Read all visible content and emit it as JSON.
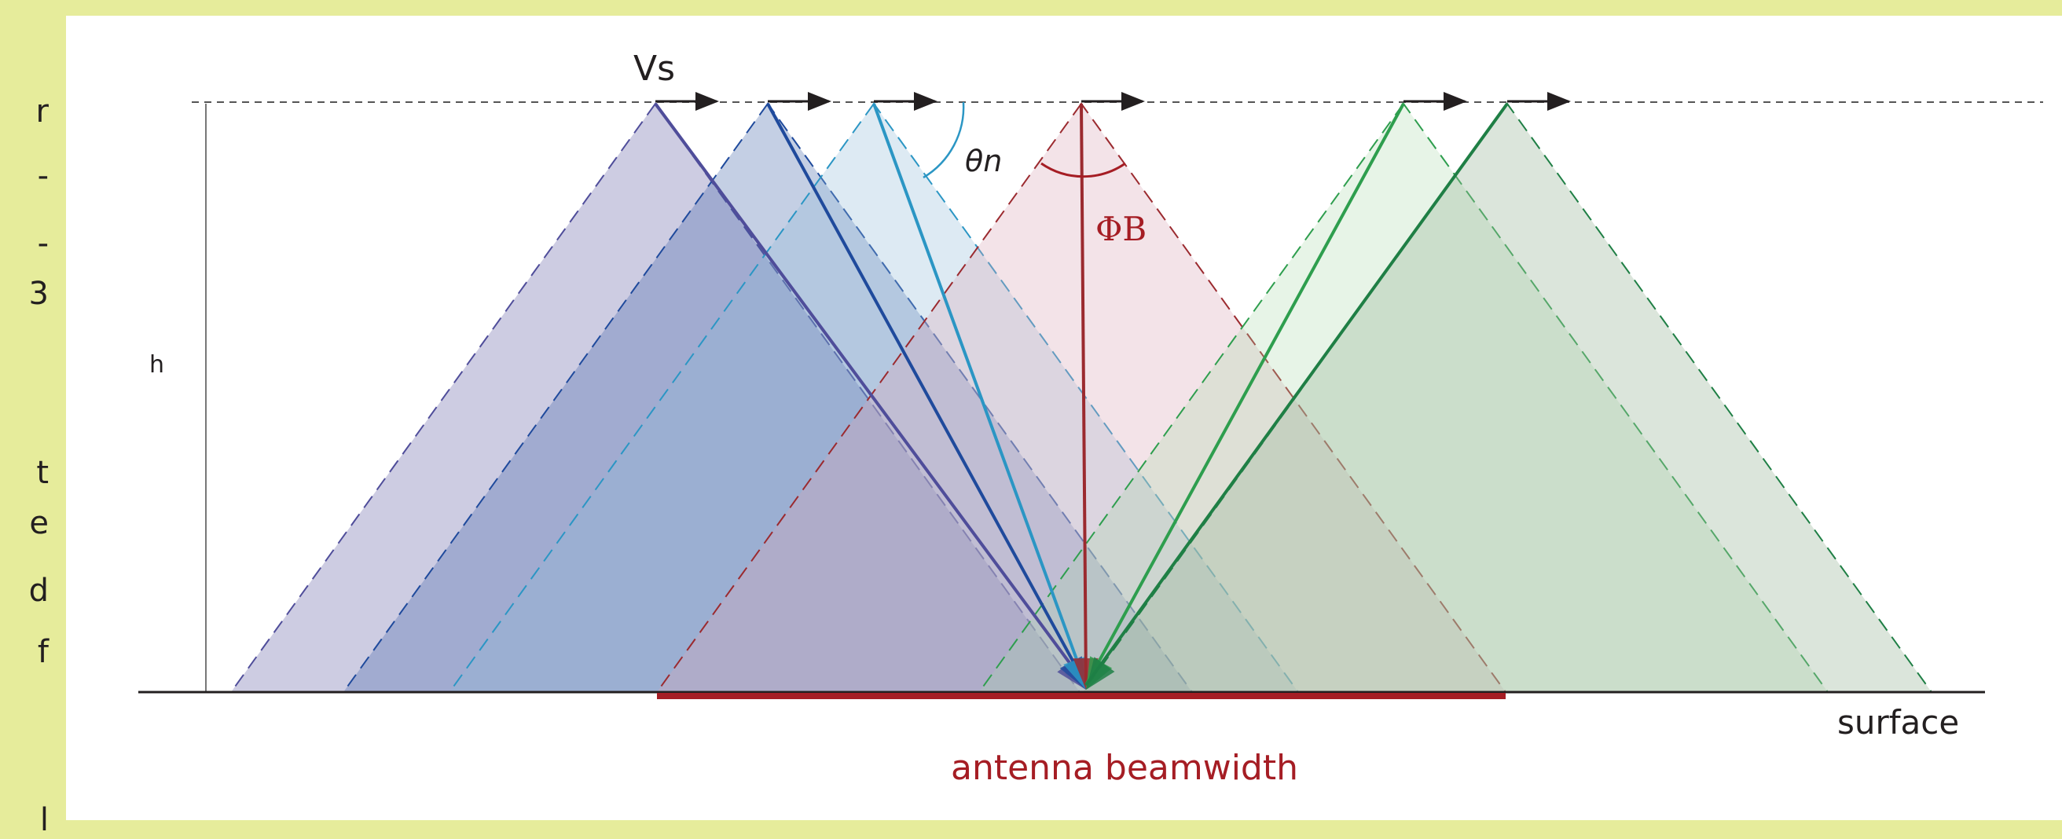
{
  "side_fragments": [
    "r",
    "-",
    "-",
    "3",
    "t",
    "e",
    "d",
    "f",
    "l"
  ],
  "labels": {
    "vs": "Vs",
    "theta_n": "θn",
    "phi_b": "ΦB",
    "h": "h",
    "surface": "surface",
    "antenna_beamwidth": "antenna beamwidth"
  },
  "colors": {
    "background": "#e6ec9b",
    "panel": "#ffffff",
    "beam_red": "#a51d24",
    "arrow": "#231f20"
  },
  "beams": [
    {
      "name": "beam-1",
      "fill": "#6b6aa9",
      "stroke": "#4f4d9a",
      "fill_opacity": 0.34
    },
    {
      "name": "beam-2",
      "fill": "#3d5fa7",
      "stroke": "#1f4a9c",
      "fill_opacity": 0.3
    },
    {
      "name": "beam-3",
      "fill": "#8fb8d6",
      "stroke": "#2b96c4",
      "fill_opacity": 0.3
    },
    {
      "name": "beam-4",
      "fill": "#d9a7b8",
      "stroke": "#9b2a2f",
      "fill_opacity": 0.32
    },
    {
      "name": "beam-5",
      "fill": "#a8d6a8",
      "stroke": "#2e9e4e",
      "fill_opacity": 0.28
    },
    {
      "name": "beam-6",
      "fill": "#9bb79c",
      "stroke": "#1f7f45",
      "fill_opacity": 0.36
    }
  ]
}
